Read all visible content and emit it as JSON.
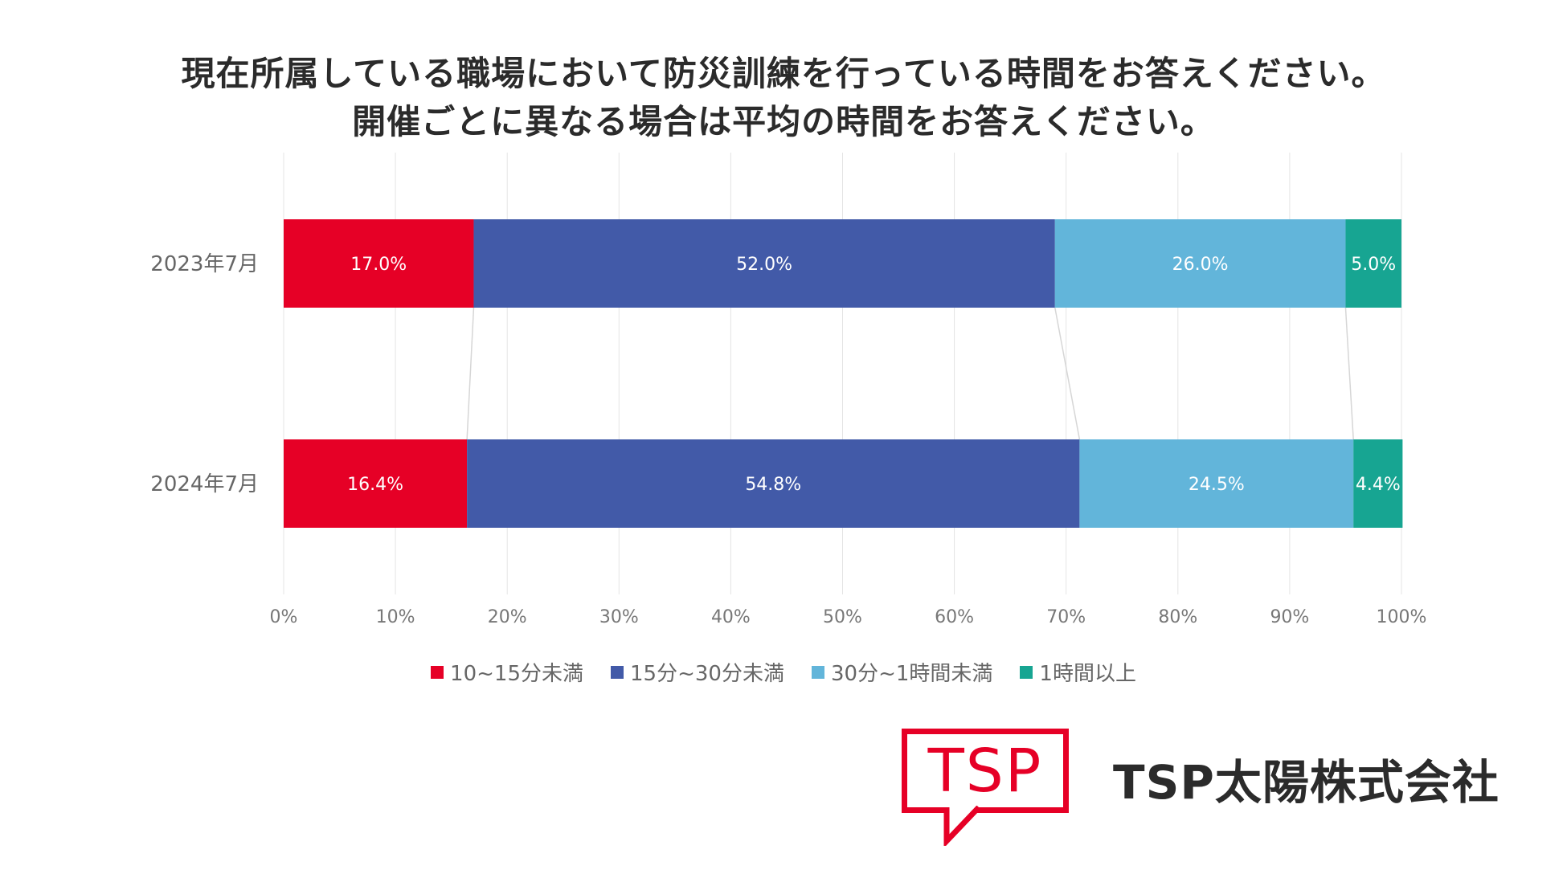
{
  "title_lines": [
    "現在所属している職場において防災訓練を行っている時間をお答えください。",
    "開催ごとに異なる場合は平均の時間をお答えください。"
  ],
  "chart_data": {
    "type": "bar",
    "orientation": "horizontal",
    "stacked": true,
    "categories": [
      "2023年7月",
      "2024年7月"
    ],
    "series": [
      {
        "name": "10~15分未満",
        "color": "#e60026",
        "values": [
          17.0,
          16.4
        ],
        "labels": [
          "17.0%",
          "16.4%"
        ]
      },
      {
        "name": "15分~30分未満",
        "color": "#425aa8",
        "values": [
          52.0,
          54.8
        ],
        "labels": [
          "52.0%",
          "54.8%"
        ]
      },
      {
        "name": "30分~1時間未満",
        "color": "#62b5da",
        "values": [
          26.0,
          24.5
        ],
        "labels": [
          "26.0%",
          "24.5%"
        ]
      },
      {
        "name": "1時間以上",
        "color": "#17a592",
        "values": [
          5.0,
          4.4
        ],
        "labels": [
          "5.0%",
          "4.4%"
        ]
      }
    ],
    "xlim": [
      0,
      100
    ],
    "x_ticks": [
      "0%",
      "10%",
      "20%",
      "30%",
      "40%",
      "50%",
      "60%",
      "70%",
      "80%",
      "90%",
      "100%"
    ],
    "grid": true,
    "series_connector_lines": true,
    "legend_position": "bottom"
  },
  "logo": {
    "mark_text": "TSP",
    "company_name": "TSP太陽株式会社",
    "color": "#e60026"
  }
}
